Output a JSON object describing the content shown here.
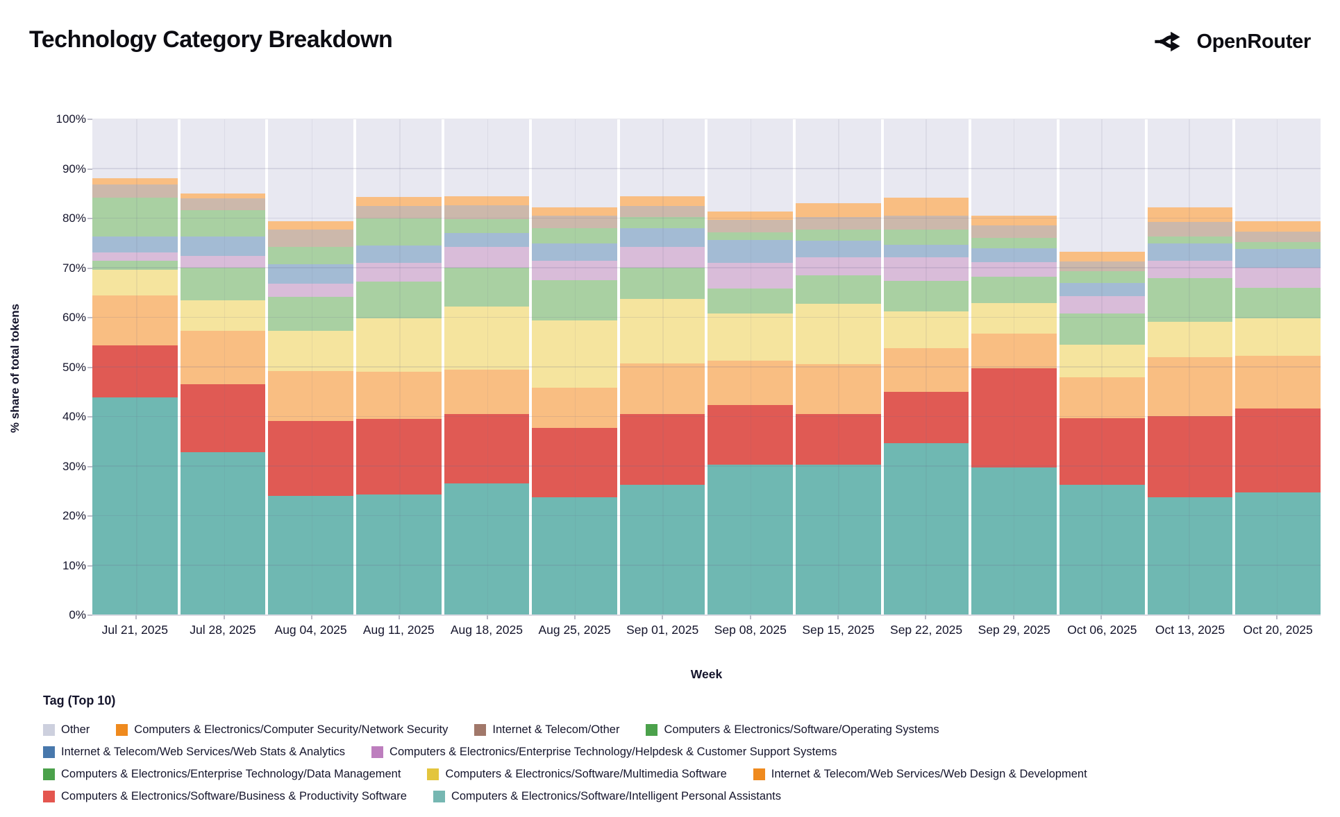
{
  "header": {
    "title": "Technology Category Breakdown",
    "brand": "OpenRouter"
  },
  "axes": {
    "ylabel": "% share of total tokens",
    "xlabel": "Week",
    "ymin": 0,
    "ymax": 100,
    "ytick_step": 10,
    "ytick_suffix": "%"
  },
  "legend": {
    "title": "Tag (Top 10)",
    "rows": [
      [
        {
          "label": "Other",
          "color": "#cdd0de"
        },
        {
          "label": "Computers & Electronics/Computer Security/Network Security",
          "color": "#ef8a1e"
        },
        {
          "label": "Internet & Telecom/Other",
          "color": "#a1786a"
        },
        {
          "label": "Computers & Electronics/Software/Operating Systems",
          "color": "#4ba14b"
        }
      ],
      [
        {
          "label": "Internet & Telecom/Web Services/Web Stats & Analytics",
          "color": "#4878ac"
        },
        {
          "label": "Computers & Electronics/Enterprise Technology/Helpdesk & Customer Support Systems",
          "color": "#bd7ebe"
        }
      ],
      [
        {
          "label": "Computers & Electronics/Enterprise Technology/Data Management",
          "color": "#4ba14b"
        },
        {
          "label": "Computers & Electronics/Software/Multimedia Software",
          "color": "#e3c53d"
        },
        {
          "label": "Internet & Telecom/Web Services/Web Design & Development",
          "color": "#ef8a1e"
        }
      ],
      [
        {
          "label": "Computers & Electronics/Software/Business & Productivity Software",
          "color": "#e4564f"
        },
        {
          "label": "Computers & Electronics/Software/Intelligent Personal Assistants",
          "color": "#76b7b2"
        }
      ]
    ]
  },
  "chart_data": {
    "type": "bar",
    "variant": "stacked-100-percent",
    "title": "Technology Category Breakdown",
    "xlabel": "Week",
    "ylabel": "% share of total tokens",
    "ylim": [
      0,
      100
    ],
    "grid": true,
    "legend_position": "bottom",
    "categories": [
      "Jul 21, 2025",
      "Jul 28, 2025",
      "Aug 04, 2025",
      "Aug 11, 2025",
      "Aug 18, 2025",
      "Aug 25, 2025",
      "Sep 01, 2025",
      "Sep 08, 2025",
      "Sep 15, 2025",
      "Sep 22, 2025",
      "Sep 29, 2025",
      "Oct 06, 2025",
      "Oct 13, 2025",
      "Oct 20, 2025"
    ],
    "stack_order": "bottom-to-top",
    "series": [
      {
        "name": "Computers & Electronics/Software/Intelligent Personal Assistants",
        "fill": "#6fb8b2",
        "values": [
          43.9,
          32.8,
          24.0,
          24.3,
          26.5,
          23.8,
          26.3,
          30.4,
          30.3,
          34.7,
          29.8,
          26.3,
          23.8,
          24.7
        ]
      },
      {
        "name": "Computers & Electronics/Software/Business & Productivity Software",
        "fill": "#e05a54",
        "values": [
          10.5,
          13.8,
          15.1,
          15.3,
          14.1,
          13.9,
          14.2,
          11.9,
          10.2,
          10.3,
          20.0,
          13.4,
          16.3,
          16.9
        ]
      },
      {
        "name": "Internet & Telecom/Web Services/Web Design & Development",
        "fill": "#f9be82",
        "values": [
          10.1,
          10.8,
          10.1,
          9.5,
          8.9,
          8.2,
          10.3,
          9.0,
          10.1,
          8.8,
          7.0,
          8.3,
          11.9,
          10.7
        ]
      },
      {
        "name": "Computers & Electronics/Software/Multimedia Software",
        "fill": "#f5e49e",
        "values": [
          5.1,
          6.1,
          8.1,
          10.7,
          12.7,
          13.5,
          13.0,
          9.5,
          12.2,
          7.5,
          6.1,
          6.5,
          7.1,
          7.6
        ]
      },
      {
        "name": "Computers & Electronics/Enterprise Technology/Data Management",
        "fill": "#a9d0a2",
        "values": [
          1.9,
          6.6,
          6.9,
          7.5,
          7.9,
          8.2,
          6.3,
          5.1,
          5.7,
          6.1,
          5.4,
          6.4,
          8.9,
          6.1
        ]
      },
      {
        "name": "Computers & Electronics/Enterprise Technology/Helpdesk & Customer Support Systems",
        "fill": "#d9bcd9",
        "values": [
          1.7,
          2.4,
          2.7,
          3.7,
          4.1,
          3.9,
          4.1,
          5.2,
          3.6,
          4.7,
          2.9,
          3.4,
          3.5,
          4.0
        ]
      },
      {
        "name": "Internet & Telecom/Web Services/Web Stats & Analytics",
        "fill": "#a3bbd4",
        "values": [
          3.1,
          3.8,
          3.8,
          3.6,
          2.9,
          3.5,
          3.8,
          4.6,
          3.4,
          2.6,
          2.8,
          2.7,
          3.4,
          3.8
        ]
      },
      {
        "name": "Computers & Electronics/Software/Operating Systems",
        "fill": "#a9d0a2",
        "values": [
          7.9,
          5.4,
          3.6,
          5.4,
          2.8,
          3.1,
          2.3,
          1.5,
          2.3,
          3.0,
          2.1,
          2.4,
          1.4,
          1.4
        ]
      },
      {
        "name": "Internet & Telecom/Other",
        "fill": "#ccb8ab",
        "values": [
          2.7,
          2.3,
          3.5,
          2.5,
          2.7,
          2.4,
          2.2,
          2.5,
          2.5,
          2.8,
          2.5,
          1.9,
          3.0,
          2.2
        ]
      },
      {
        "name": "Computers & Electronics/Computer Security/Network Security",
        "fill": "#f9be82",
        "values": [
          1.2,
          1.1,
          1.6,
          1.9,
          1.9,
          1.8,
          2.0,
          1.7,
          2.8,
          3.7,
          1.9,
          2.0,
          3.0,
          2.1
        ]
      },
      {
        "name": "Other",
        "fill": "#e8e8f1",
        "values": [
          11.9,
          14.9,
          20.6,
          15.6,
          15.5,
          17.7,
          15.5,
          18.6,
          16.9,
          15.8,
          19.5,
          26.7,
          17.7,
          20.5
        ]
      }
    ]
  }
}
